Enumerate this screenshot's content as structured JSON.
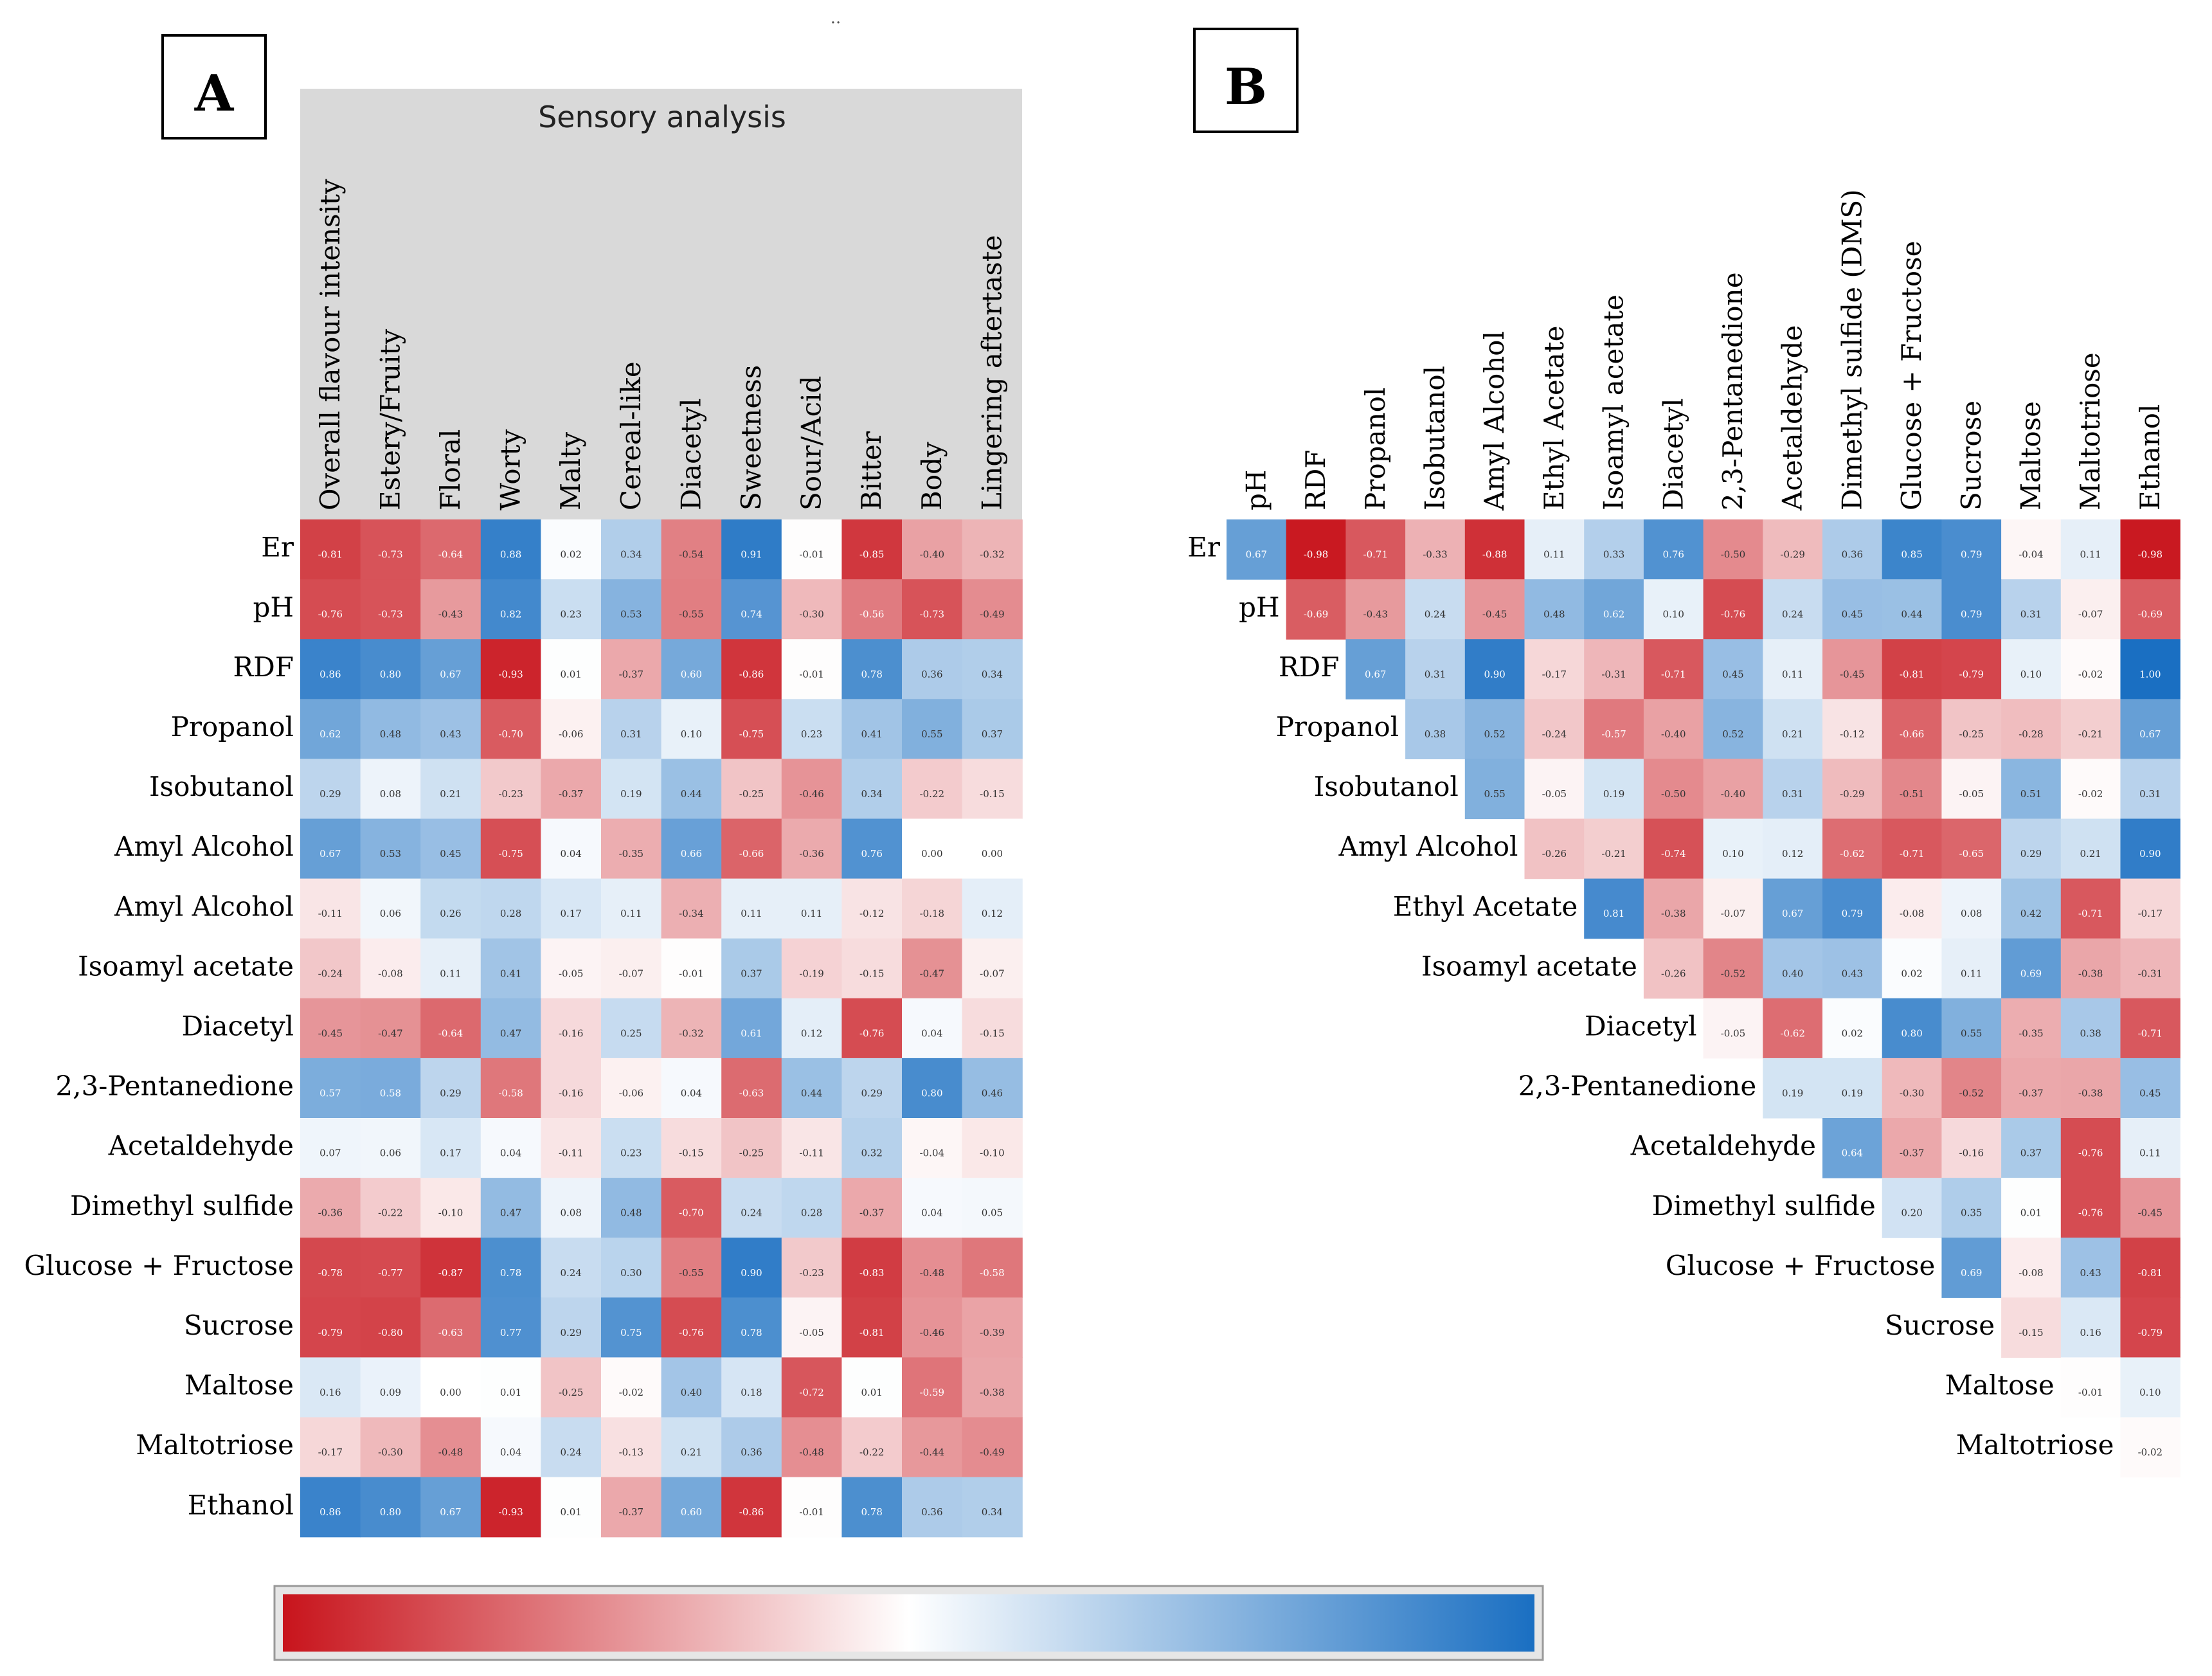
{
  "panels": {
    "a": {
      "label": "A",
      "header": "Sensory analysis"
    },
    "b": {
      "label": "B"
    }
  },
  "top_mark": "..",
  "colors": {
    "negative": "#c8141c",
    "neutral": "#ffffff",
    "positive": "#1a6fc2",
    "header_bg": "#d9d9d9",
    "frame": "#000000"
  },
  "chart_data": [
    {
      "type": "heatmap",
      "panel": "A",
      "title": "Sensory analysis",
      "color_range": [
        -1,
        1
      ],
      "columns": [
        "Overall flavour intensity",
        "Estery/Fruity",
        "Floral",
        "Worty",
        "Malty",
        "Cereal-like",
        "Diacetyl",
        "Sweetness",
        "Sour/Acid",
        "Bitter",
        "Body",
        "Lingering aftertaste"
      ],
      "rows": [
        "Er",
        "pH",
        "RDF",
        "Propanol",
        "Isobutanol",
        "Amyl Alcohol",
        "Amyl Alcohol",
        "Isoamyl acetate",
        "Diacetyl",
        "2,3-Pentanedione",
        "Acetaldehyde",
        "Dimethyl sulfide",
        "Glucose + Fructose",
        "Sucrose",
        "Maltose",
        "Maltotriose",
        "Ethanol"
      ],
      "values": [
        [
          -0.81,
          -0.73,
          -0.64,
          0.88,
          0.02,
          0.34,
          -0.54,
          0.91,
          -0.01,
          -0.85,
          -0.4,
          -0.32
        ],
        [
          -0.76,
          -0.73,
          -0.43,
          0.82,
          0.23,
          0.53,
          -0.55,
          0.74,
          -0.3,
          -0.56,
          -0.73,
          -0.49
        ],
        [
          0.86,
          0.8,
          0.67,
          -0.93,
          0.01,
          -0.37,
          0.6,
          -0.86,
          -0.01,
          0.78,
          0.36,
          0.34
        ],
        [
          0.62,
          0.48,
          0.43,
          -0.7,
          -0.06,
          0.31,
          0.1,
          -0.75,
          0.23,
          0.41,
          0.55,
          0.37
        ],
        [
          0.29,
          0.08,
          0.21,
          -0.23,
          -0.37,
          0.19,
          0.44,
          -0.25,
          -0.46,
          0.34,
          -0.22,
          -0.15
        ],
        [
          0.67,
          0.53,
          0.45,
          -0.75,
          0.04,
          -0.35,
          0.66,
          -0.66,
          -0.36,
          0.76,
          0.0,
          0.0
        ],
        [
          -0.11,
          0.06,
          0.26,
          0.28,
          0.17,
          0.11,
          -0.34,
          0.11,
          0.11,
          -0.12,
          -0.18,
          0.12
        ],
        [
          -0.24,
          -0.08,
          0.11,
          0.41,
          -0.05,
          -0.07,
          -0.01,
          0.37,
          -0.19,
          -0.15,
          -0.47,
          -0.07
        ],
        [
          -0.45,
          -0.47,
          -0.64,
          0.47,
          -0.16,
          0.25,
          -0.32,
          0.61,
          0.12,
          -0.76,
          0.04,
          -0.15
        ],
        [
          0.57,
          0.58,
          0.29,
          -0.58,
          -0.16,
          -0.06,
          0.04,
          -0.63,
          0.44,
          0.29,
          0.8,
          0.46
        ],
        [
          0.07,
          0.06,
          0.17,
          0.04,
          -0.11,
          0.23,
          -0.15,
          -0.25,
          -0.11,
          0.32,
          -0.04,
          -0.1
        ],
        [
          -0.36,
          -0.22,
          -0.1,
          0.47,
          0.08,
          0.48,
          -0.7,
          0.24,
          0.28,
          -0.37,
          0.04,
          0.05
        ],
        [
          -0.78,
          -0.77,
          -0.87,
          0.78,
          0.24,
          0.3,
          -0.55,
          0.9,
          -0.23,
          -0.83,
          -0.48,
          -0.58
        ],
        [
          -0.79,
          -0.8,
          -0.63,
          0.77,
          0.29,
          0.75,
          -0.76,
          0.78,
          -0.05,
          -0.81,
          -0.46,
          -0.39
        ],
        [
          0.16,
          0.09,
          0.0,
          0.01,
          -0.25,
          -0.02,
          0.4,
          0.18,
          -0.72,
          0.01,
          -0.59,
          -0.38
        ],
        [
          -0.17,
          -0.3,
          -0.48,
          0.04,
          0.24,
          -0.13,
          0.21,
          0.36,
          -0.48,
          -0.22,
          -0.44,
          -0.49
        ],
        [
          0.86,
          0.8,
          0.67,
          -0.93,
          0.01,
          -0.37,
          0.6,
          -0.86,
          -0.01,
          0.78,
          0.36,
          0.34
        ]
      ]
    },
    {
      "type": "heatmap",
      "panel": "B",
      "color_range": [
        -1,
        1
      ],
      "columns": [
        "pH",
        "RDF",
        "Propanol",
        "Isobutanol",
        "Amyl Alcohol",
        "Ethyl Acetate",
        "Isoamyl acetate",
        "Diacetyl",
        "2,3-Pentanedione",
        "Acetaldehyde",
        "Dimethyl sulfide (DMS)",
        "Glucose + Fructose",
        "Sucrose",
        "Maltose",
        "Maltotriose",
        "Ethanol"
      ],
      "rows": [
        "Er",
        "pH",
        "RDF",
        "Propanol",
        "Isobutanol",
        "Amyl Alcohol",
        "Ethyl Acetate",
        "Isoamyl acetate",
        "Diacetyl",
        "2,3-Pentanedione",
        "Acetaldehyde",
        "Dimethyl sulfide",
        "Glucose + Fructose",
        "Sucrose",
        "Maltose",
        "Maltotriose"
      ],
      "row_start_col": [
        0,
        1,
        2,
        3,
        4,
        5,
        6,
        7,
        8,
        9,
        10,
        11,
        12,
        13,
        14,
        15
      ],
      "values": [
        [
          0.67,
          -0.98,
          -0.71,
          -0.33,
          -0.88,
          0.11,
          0.33,
          0.76,
          -0.5,
          -0.29,
          0.36,
          0.85,
          0.79,
          -0.04,
          0.11,
          -0.98
        ],
        [
          -0.69,
          -0.43,
          0.24,
          -0.45,
          0.48,
          0.62,
          0.1,
          -0.76,
          0.24,
          0.45,
          0.44,
          0.79,
          0.31,
          -0.07,
          -0.69
        ],
        [
          0.67,
          0.31,
          0.9,
          -0.17,
          -0.31,
          -0.71,
          0.45,
          0.11,
          -0.45,
          -0.81,
          -0.79,
          0.1,
          -0.02,
          1.0
        ],
        [
          0.38,
          0.52,
          -0.24,
          -0.57,
          -0.4,
          0.52,
          0.21,
          -0.12,
          -0.66,
          -0.25,
          -0.28,
          -0.21,
          0.67
        ],
        [
          0.55,
          -0.05,
          0.19,
          -0.5,
          -0.4,
          0.31,
          -0.29,
          -0.51,
          -0.05,
          0.51,
          -0.02,
          0.31
        ],
        [
          -0.26,
          -0.21,
          -0.74,
          0.1,
          0.12,
          -0.62,
          -0.71,
          -0.65,
          0.29,
          0.21,
          0.9
        ],
        [
          0.81,
          -0.38,
          -0.07,
          0.67,
          0.79,
          -0.08,
          0.08,
          0.42,
          -0.71,
          -0.17
        ],
        [
          -0.26,
          -0.52,
          0.4,
          0.43,
          0.02,
          0.11,
          0.69,
          -0.38,
          -0.31
        ],
        [
          -0.05,
          -0.62,
          0.02,
          0.8,
          0.55,
          -0.35,
          0.38,
          -0.71
        ],
        [
          0.19,
          0.19,
          -0.3,
          -0.52,
          -0.37,
          -0.38,
          0.45
        ],
        [
          0.64,
          -0.37,
          -0.16,
          0.37,
          -0.76,
          0.11
        ],
        [
          0.2,
          0.35,
          0.01,
          -0.76,
          -0.45
        ],
        [
          0.69,
          -0.08,
          0.43,
          -0.81
        ],
        [
          -0.15,
          0.16,
          -0.79
        ],
        [
          -0.01,
          0.1
        ],
        [
          -0.02
        ]
      ]
    }
  ]
}
